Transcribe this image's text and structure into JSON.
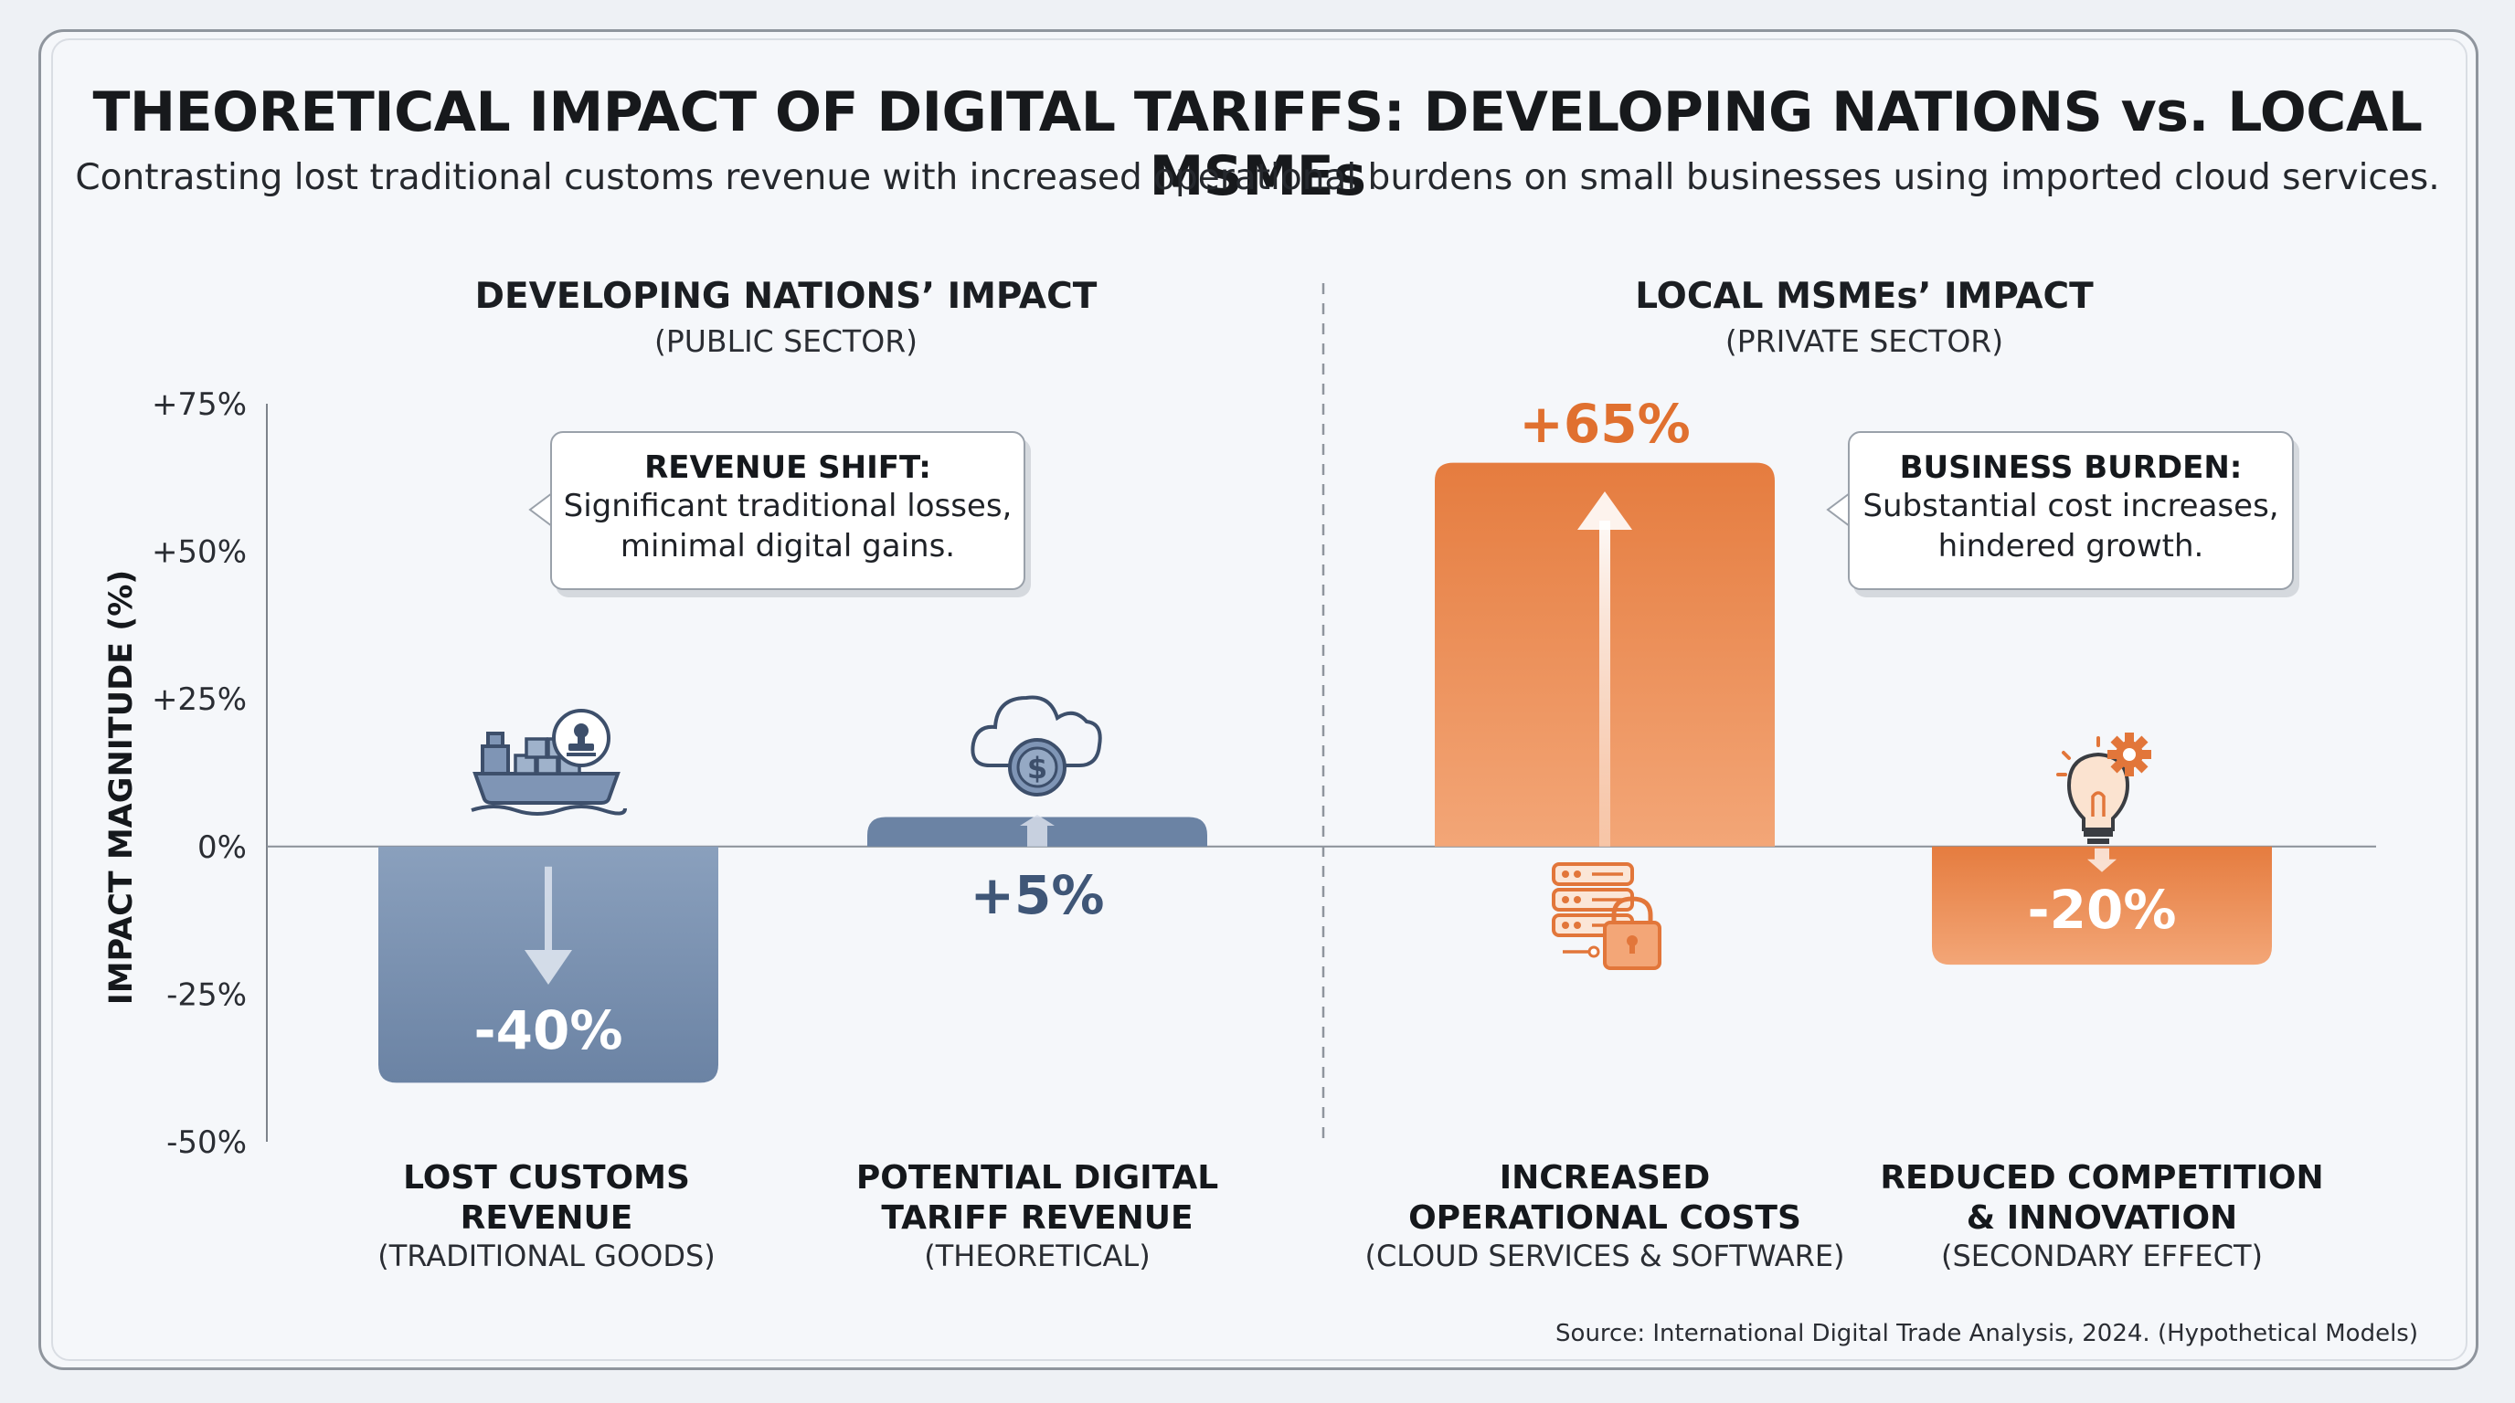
{
  "title": "THEORETICAL IMPACT OF DIGITAL TARIFFS: DEVELOPING NATIONS vs. LOCAL MSMEs",
  "subtitle": "Contrasting lost traditional customs revenue with increased operational burdens on small businesses using imported cloud services.",
  "sections": {
    "left": {
      "title": "DEVELOPING NATIONS’ IMPACT",
      "subtitle": "(PUBLIC SECTOR)"
    },
    "right": {
      "title": "LOCAL MSMEs’ IMPACT",
      "subtitle": "(PRIVATE SECTOR)"
    }
  },
  "callouts": {
    "left": {
      "title": "REVENUE SHIFT:",
      "line1": "Significant traditional losses,",
      "line2": "minimal digital gains."
    },
    "right": {
      "title": "BUSINESS BURDEN:",
      "line1": "Substantial cost increases,",
      "line2": "hindered growth."
    }
  },
  "source": "Source: International Digital Trade Analysis, 2024. (Hypothetical Models)",
  "colors": {
    "public_bar": "#6b83a4",
    "public_bar_light": "#8aa0bd",
    "private_bar": "#e57c3f",
    "private_bar_light": "#f3a677",
    "public_text": "#3f5677",
    "private_text": "#e0702f"
  },
  "chart_data": {
    "type": "bar",
    "ylabel": "IMPACT MAGNITUDE (%)",
    "ylim": [
      -50,
      75
    ],
    "yticks": [
      "+75%",
      "+50%",
      "+25%",
      "0%",
      "-25%",
      "-50%"
    ],
    "ytick_values": [
      75,
      50,
      25,
      0,
      -25,
      -50
    ],
    "categories": [
      {
        "label_line1": "LOST CUSTOMS",
        "label_line2": "REVENUE",
        "sublabel": "(TRADITIONAL GOODS)",
        "value": -40,
        "value_label": "-40%",
        "group": "public",
        "icon": "cargo-ship-icon"
      },
      {
        "label_line1": "POTENTIAL DIGITAL",
        "label_line2": "TARIFF REVENUE",
        "sublabel": "(THEORETICAL)",
        "value": 5,
        "value_label": "+5%",
        "group": "public",
        "icon": "cloud-dollar-icon"
      },
      {
        "label_line1": "INCREASED",
        "label_line2": "OPERATIONAL COSTS",
        "sublabel": "(CLOUD SERVICES & SOFTWARE)",
        "value": 65,
        "value_label": "+65%",
        "group": "private",
        "icon": "server-lock-icon"
      },
      {
        "label_line1": "REDUCED COMPETITION",
        "label_line2": "& INNOVATION",
        "sublabel": "(SECONDARY EFFECT)",
        "value": -20,
        "value_label": "-20%",
        "group": "private",
        "icon": "lightbulb-gear-icon"
      }
    ]
  }
}
